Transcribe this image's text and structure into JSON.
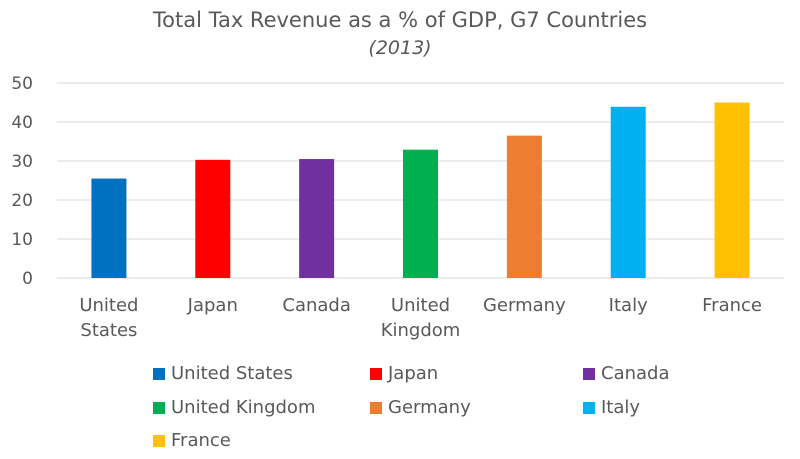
{
  "chart_data": {
    "type": "bar",
    "title": "Total Tax Revenue as a % of GDP, G7 Countries",
    "subtitle": "(2013)",
    "categories": [
      "United States",
      "Japan",
      "Canada",
      "United Kingdom",
      "Germany",
      "Italy",
      "France"
    ],
    "category_lines": [
      [
        "United",
        "States"
      ],
      [
        "Japan"
      ],
      [
        "Canada"
      ],
      [
        "United",
        "Kingdom"
      ],
      [
        "Germany"
      ],
      [
        "Italy"
      ],
      [
        "France"
      ]
    ],
    "values": [
      25.5,
      30.3,
      30.5,
      32.9,
      36.5,
      43.9,
      45.0
    ],
    "colors": [
      "#0070C0",
      "#FF0000",
      "#7030A0",
      "#00B050",
      "#ED7D31",
      "#00B0F0",
      "#FFC000"
    ],
    "ylim": [
      0,
      50
    ],
    "yticks": [
      0,
      10,
      20,
      30,
      40,
      50
    ],
    "grid": true,
    "legend": {
      "position": "bottom",
      "entries": [
        "United States",
        "Japan",
        "Canada",
        "United Kingdom",
        "Germany",
        "Italy",
        "France"
      ]
    },
    "xlabel": "",
    "ylabel": ""
  }
}
